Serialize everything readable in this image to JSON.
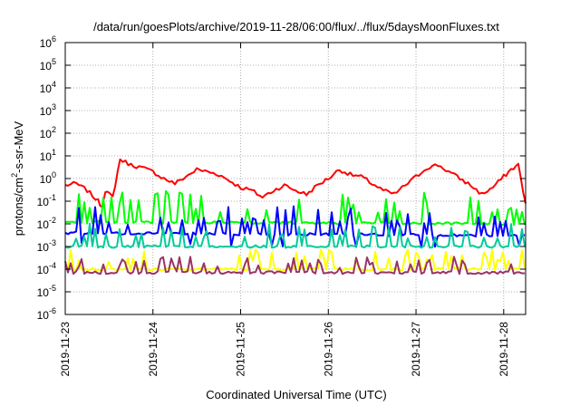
{
  "chart_data": {
    "type": "line",
    "title": "/data/run/goesPlots/archive/2019-11-28/06:00/flux/../flux/5daysMoonFluxes.txt",
    "xlabel": "Coordinated Universal Time (UTC)",
    "ylabel_parts": [
      "protons/cm",
      "2",
      "-s-sr-MeV"
    ],
    "yscale": "log",
    "ylim": [
      1e-06,
      1000000.0
    ],
    "y_ticks": [
      {
        "base": "10",
        "exp": "-6",
        "value": 1e-06
      },
      {
        "base": "10",
        "exp": "-5",
        "value": 1e-05
      },
      {
        "base": "10",
        "exp": "-4",
        "value": 0.0001
      },
      {
        "base": "10",
        "exp": "-3",
        "value": 0.001
      },
      {
        "base": "10",
        "exp": "-2",
        "value": 0.01
      },
      {
        "base": "10",
        "exp": "-1",
        "value": 0.1
      },
      {
        "base": "10",
        "exp": "0",
        "value": 1
      },
      {
        "base": "10",
        "exp": "1",
        "value": 10
      },
      {
        "base": "10",
        "exp": "2",
        "value": 100
      },
      {
        "base": "10",
        "exp": "3",
        "value": 1000
      },
      {
        "base": "10",
        "exp": "4",
        "value": 10000
      },
      {
        "base": "10",
        "exp": "5",
        "value": 100000
      },
      {
        "base": "10",
        "exp": "6",
        "value": 1000000
      }
    ],
    "xlim": [
      "2019-11-23",
      "2019-11-28T06:00"
    ],
    "x_ticks": [
      "2019-11-23",
      "2019-11-24",
      "2019-11-25",
      "2019-11-26",
      "2019-11-27",
      "2019-11-28"
    ],
    "grid": true,
    "series_colors": [
      "#ff0000",
      "#00ff00",
      "#0000ff",
      "#00cc99",
      "#ffff00",
      "#993366"
    ],
    "series": [
      {
        "color": "#ff0000",
        "x": [
          "2019-11-23T00:00",
          "2019-11-23T03:00",
          "2019-11-23T06:00",
          "2019-11-23T09:00",
          "2019-11-23T10:00",
          "2019-11-23T11:00",
          "2019-11-23T12:00",
          "2019-11-23T13:00",
          "2019-11-23T15:00",
          "2019-11-23T18:00",
          "2019-11-23T21:00",
          "2019-11-24T00:00",
          "2019-11-24T03:00",
          "2019-11-24T06:00",
          "2019-11-24T09:00",
          "2019-11-24T12:00",
          "2019-11-24T15:00",
          "2019-11-24T18:00",
          "2019-11-24T21:00",
          "2019-11-25T00:00",
          "2019-11-25T03:00",
          "2019-11-25T06:00",
          "2019-11-25T09:00",
          "2019-11-25T12:00",
          "2019-11-25T15:00",
          "2019-11-25T18:00",
          "2019-11-25T21:00",
          "2019-11-26T00:00",
          "2019-11-26T03:00",
          "2019-11-26T06:00",
          "2019-11-26T09:00",
          "2019-11-26T12:00",
          "2019-11-26T15:00",
          "2019-11-26T18:00",
          "2019-11-26T21:00",
          "2019-11-27T00:00",
          "2019-11-27T03:00",
          "2019-11-27T06:00",
          "2019-11-27T09:00",
          "2019-11-27T12:00",
          "2019-11-27T15:00",
          "2019-11-27T18:00",
          "2019-11-27T21:00",
          "2019-11-28T00:00",
          "2019-11-28T02:00",
          "2019-11-28T04:00",
          "2019-11-28T06:00"
        ],
        "values": [
          0.5,
          0.6,
          0.3,
          0.1,
          0.06,
          0.3,
          0.2,
          0.15,
          7,
          4,
          3,
          2,
          1,
          0.6,
          1.2,
          2.5,
          2,
          1.5,
          0.8,
          0.4,
          0.3,
          0.15,
          0.3,
          0.5,
          0.3,
          0.2,
          0.5,
          1,
          2.5,
          1.5,
          1.2,
          0.6,
          0.3,
          0.2,
          0.5,
          1.2,
          3,
          4,
          2,
          1,
          0.5,
          0.2,
          0.4,
          1.2,
          2.5,
          4,
          0.08
        ]
      },
      {
        "color": "#00ff00",
        "x": [
          "2019-11-23T00:00",
          "2019-11-28T06:00"
        ],
        "values": [
          0.012,
          0.01
        ]
      },
      {
        "color": "#0000ff",
        "x": [
          "2019-11-23T00:00",
          "2019-11-28T06:00"
        ],
        "values": [
          0.004,
          0.003
        ]
      },
      {
        "color": "#00cc99",
        "x": [
          "2019-11-23T00:00",
          "2019-11-28T06:00"
        ],
        "values": [
          0.001,
          0.001
        ]
      },
      {
        "color": "#ffff00",
        "x": [
          "2019-11-23T00:00",
          "2019-11-28T06:00"
        ],
        "values": [
          0.0001,
          0.0001
        ]
      },
      {
        "color": "#993366",
        "x": [
          "2019-11-23T00:00",
          "2019-11-28T06:00"
        ],
        "values": [
          7e-05,
          7e-05
        ]
      }
    ]
  }
}
